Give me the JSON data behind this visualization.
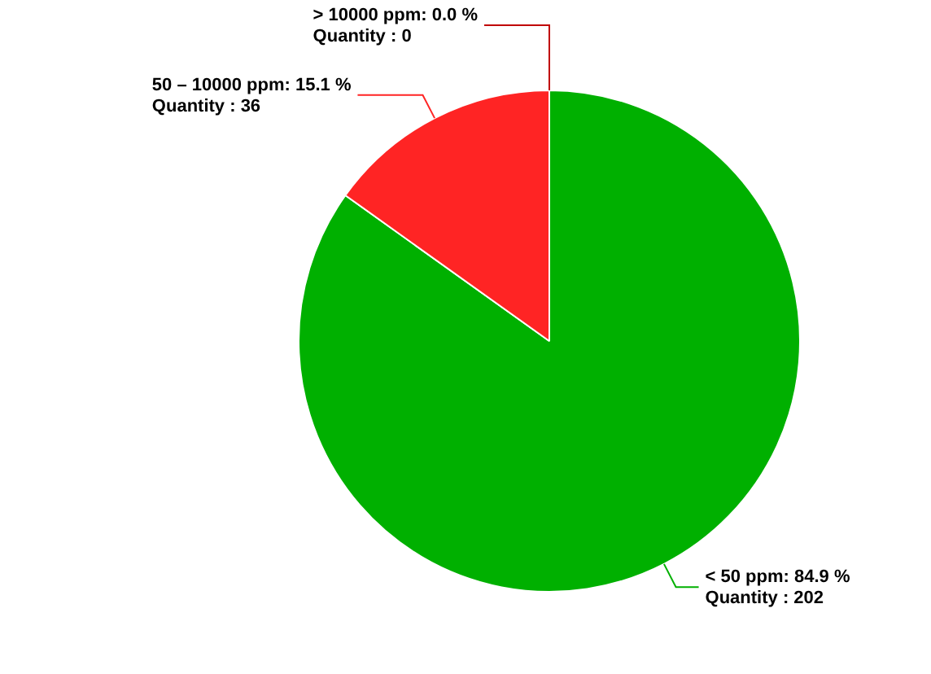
{
  "chart_data": {
    "type": "pie",
    "categories": [
      "< 50 ppm",
      "50 – 10000 ppm",
      "> 10000 ppm"
    ],
    "values": [
      202,
      36,
      0
    ],
    "colors": [
      "#00b000",
      "#ff2424",
      "#c00000"
    ],
    "value_labels": [
      ": 84.9 %\nQuantity : 202",
      ": 15.1 %\nQuantity : 36",
      ": 0.0 %\nQuantity : 0"
    ],
    "legend": false
  }
}
